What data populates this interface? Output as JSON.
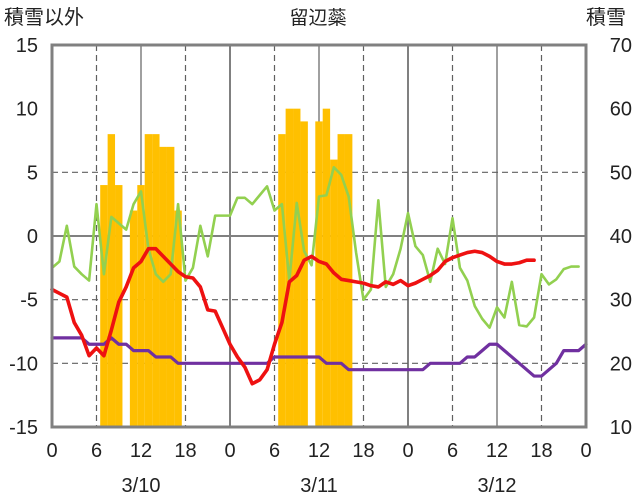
{
  "chart_data": {
    "type": "bar+line",
    "title": "留辺蘂",
    "left_axis_label": "積雪以外",
    "right_axis_label": "積雪",
    "left_ylim": [
      -15,
      15
    ],
    "left_ticks": [
      "15",
      "10",
      "5",
      "0",
      "-5",
      "-10",
      "-15"
    ],
    "right_ylim": [
      10,
      70
    ],
    "right_ticks": [
      "70",
      "60",
      "50",
      "40",
      "30",
      "20",
      "10"
    ],
    "x_hours_range": [
      0,
      72
    ],
    "x_tick_labels": [
      "0",
      "6",
      "12",
      "18",
      "0",
      "6",
      "12",
      "18",
      "0",
      "6",
      "12",
      "18",
      "0"
    ],
    "date_labels": [
      "3/10",
      "3/11",
      "3/12"
    ],
    "grid": "dashed at 6h and 18h, solid at 0h/12h/24h/48h, dashed horizontal at ±5 and ±10",
    "colors": {
      "snow_depth": "#ffc000",
      "temperature": "#ee1111",
      "green_series": "#92d050",
      "purple_series": "#7030a0",
      "frame": "#808080"
    },
    "snow_depth_bars": [
      {
        "x": 7,
        "y": 48
      },
      {
        "x": 8,
        "y": 56
      },
      {
        "x": 9,
        "y": 48
      },
      {
        "x": 11,
        "y": 44
      },
      {
        "x": 12,
        "y": 48
      },
      {
        "x": 13,
        "y": 56
      },
      {
        "x": 14,
        "y": 56
      },
      {
        "x": 15,
        "y": 54
      },
      {
        "x": 16,
        "y": 54
      },
      {
        "x": 17,
        "y": 44
      },
      {
        "x": 31,
        "y": 56
      },
      {
        "x": 32,
        "y": 60
      },
      {
        "x": 33,
        "y": 60
      },
      {
        "x": 34,
        "y": 58
      },
      {
        "x": 36,
        "y": 58
      },
      {
        "x": 37,
        "y": 60
      },
      {
        "x": 38,
        "y": 52
      },
      {
        "x": 39,
        "y": 56
      },
      {
        "x": 40,
        "y": 56
      }
    ],
    "temperature": [
      -4.2,
      -4.5,
      -4.8,
      -6.8,
      -7.8,
      -9.4,
      -8.8,
      -9.4,
      -7.4,
      -5.2,
      -4.0,
      -2.5,
      -2.0,
      -1.0,
      -1.0,
      -1.6,
      -2.2,
      -2.8,
      -3.2,
      -3.3,
      -4.0,
      -5.8,
      -5.9,
      -7.2,
      -8.5,
      -9.5,
      -10.3,
      -11.6,
      -11.3,
      -10.5,
      -8.5,
      -6.8,
      -3.6,
      -3.1,
      -1.9,
      -1.6,
      -2.0,
      -2.2,
      -2.9,
      -3.4,
      -3.5,
      -3.6,
      -3.7,
      -3.9,
      -4.0,
      -3.6,
      -3.8,
      -3.5,
      -3.9,
      -3.7,
      -3.4,
      -3.1,
      -2.7,
      -2.0,
      -1.7,
      -1.5,
      -1.3,
      -1.2,
      -1.3,
      -1.6,
      -2.0,
      -2.2,
      -2.2,
      -2.1,
      -1.9,
      -1.9
    ],
    "green_series": [
      -2.5,
      -2.0,
      0.8,
      -2.4,
      -3.0,
      -3.5,
      2.5,
      -3.0,
      1.5,
      1.0,
      0.5,
      2.5,
      3.5,
      -1.0,
      -3.0,
      -3.6,
      -3.0,
      2.5,
      -3.5,
      -2.5,
      0.8,
      -1.6,
      1.6,
      1.6,
      1.6,
      3.0,
      3.0,
      2.5,
      3.2,
      3.9,
      2.0,
      2.5,
      -3.5,
      2.6,
      -1.2,
      -2.3,
      3.1,
      3.2,
      5.4,
      4.8,
      3.1,
      -1.3,
      -5.0,
      -4.2,
      2.8,
      -4.0,
      -3.0,
      -1.0,
      1.8,
      -0.8,
      -1.5,
      -3.6,
      -1.0,
      -2.2,
      1.4,
      -2.5,
      -3.5,
      -5.5,
      -6.5,
      -7.2,
      -5.6,
      -6.4,
      -3.6,
      -7.0,
      -7.1,
      -6.4,
      -3.0,
      -3.8,
      -3.4,
      -2.6,
      -2.4,
      -2.4
    ],
    "purple_series": [
      -8.0,
      -8.0,
      -8.0,
      -8.0,
      -8.0,
      -8.5,
      -8.5,
      -8.5,
      -8.0,
      -8.5,
      -8.5,
      -9.0,
      -9.0,
      -9.0,
      -9.5,
      -9.5,
      -9.5,
      -10.0,
      -10.0,
      -10.0,
      -10.0,
      -10.0,
      -10.0,
      -10.0,
      -10.0,
      -10.0,
      -10.0,
      -10.0,
      -10.0,
      -10.0,
      -9.5,
      -9.5,
      -9.5,
      -9.5,
      -9.5,
      -9.5,
      -9.5,
      -10.0,
      -10.0,
      -10.0,
      -10.5,
      -10.5,
      -10.5,
      -10.5,
      -10.5,
      -10.5,
      -10.5,
      -10.5,
      -10.5,
      -10.5,
      -10.5,
      -10.0,
      -10.0,
      -10.0,
      -10.0,
      -10.0,
      -9.5,
      -9.5,
      -9.0,
      -8.5,
      -8.5,
      -9.0,
      -9.5,
      -10.0,
      -10.5,
      -11.0,
      -11.0,
      -10.5,
      -10.0,
      -9.0,
      -9.0,
      -9.0,
      -8.5
    ]
  }
}
